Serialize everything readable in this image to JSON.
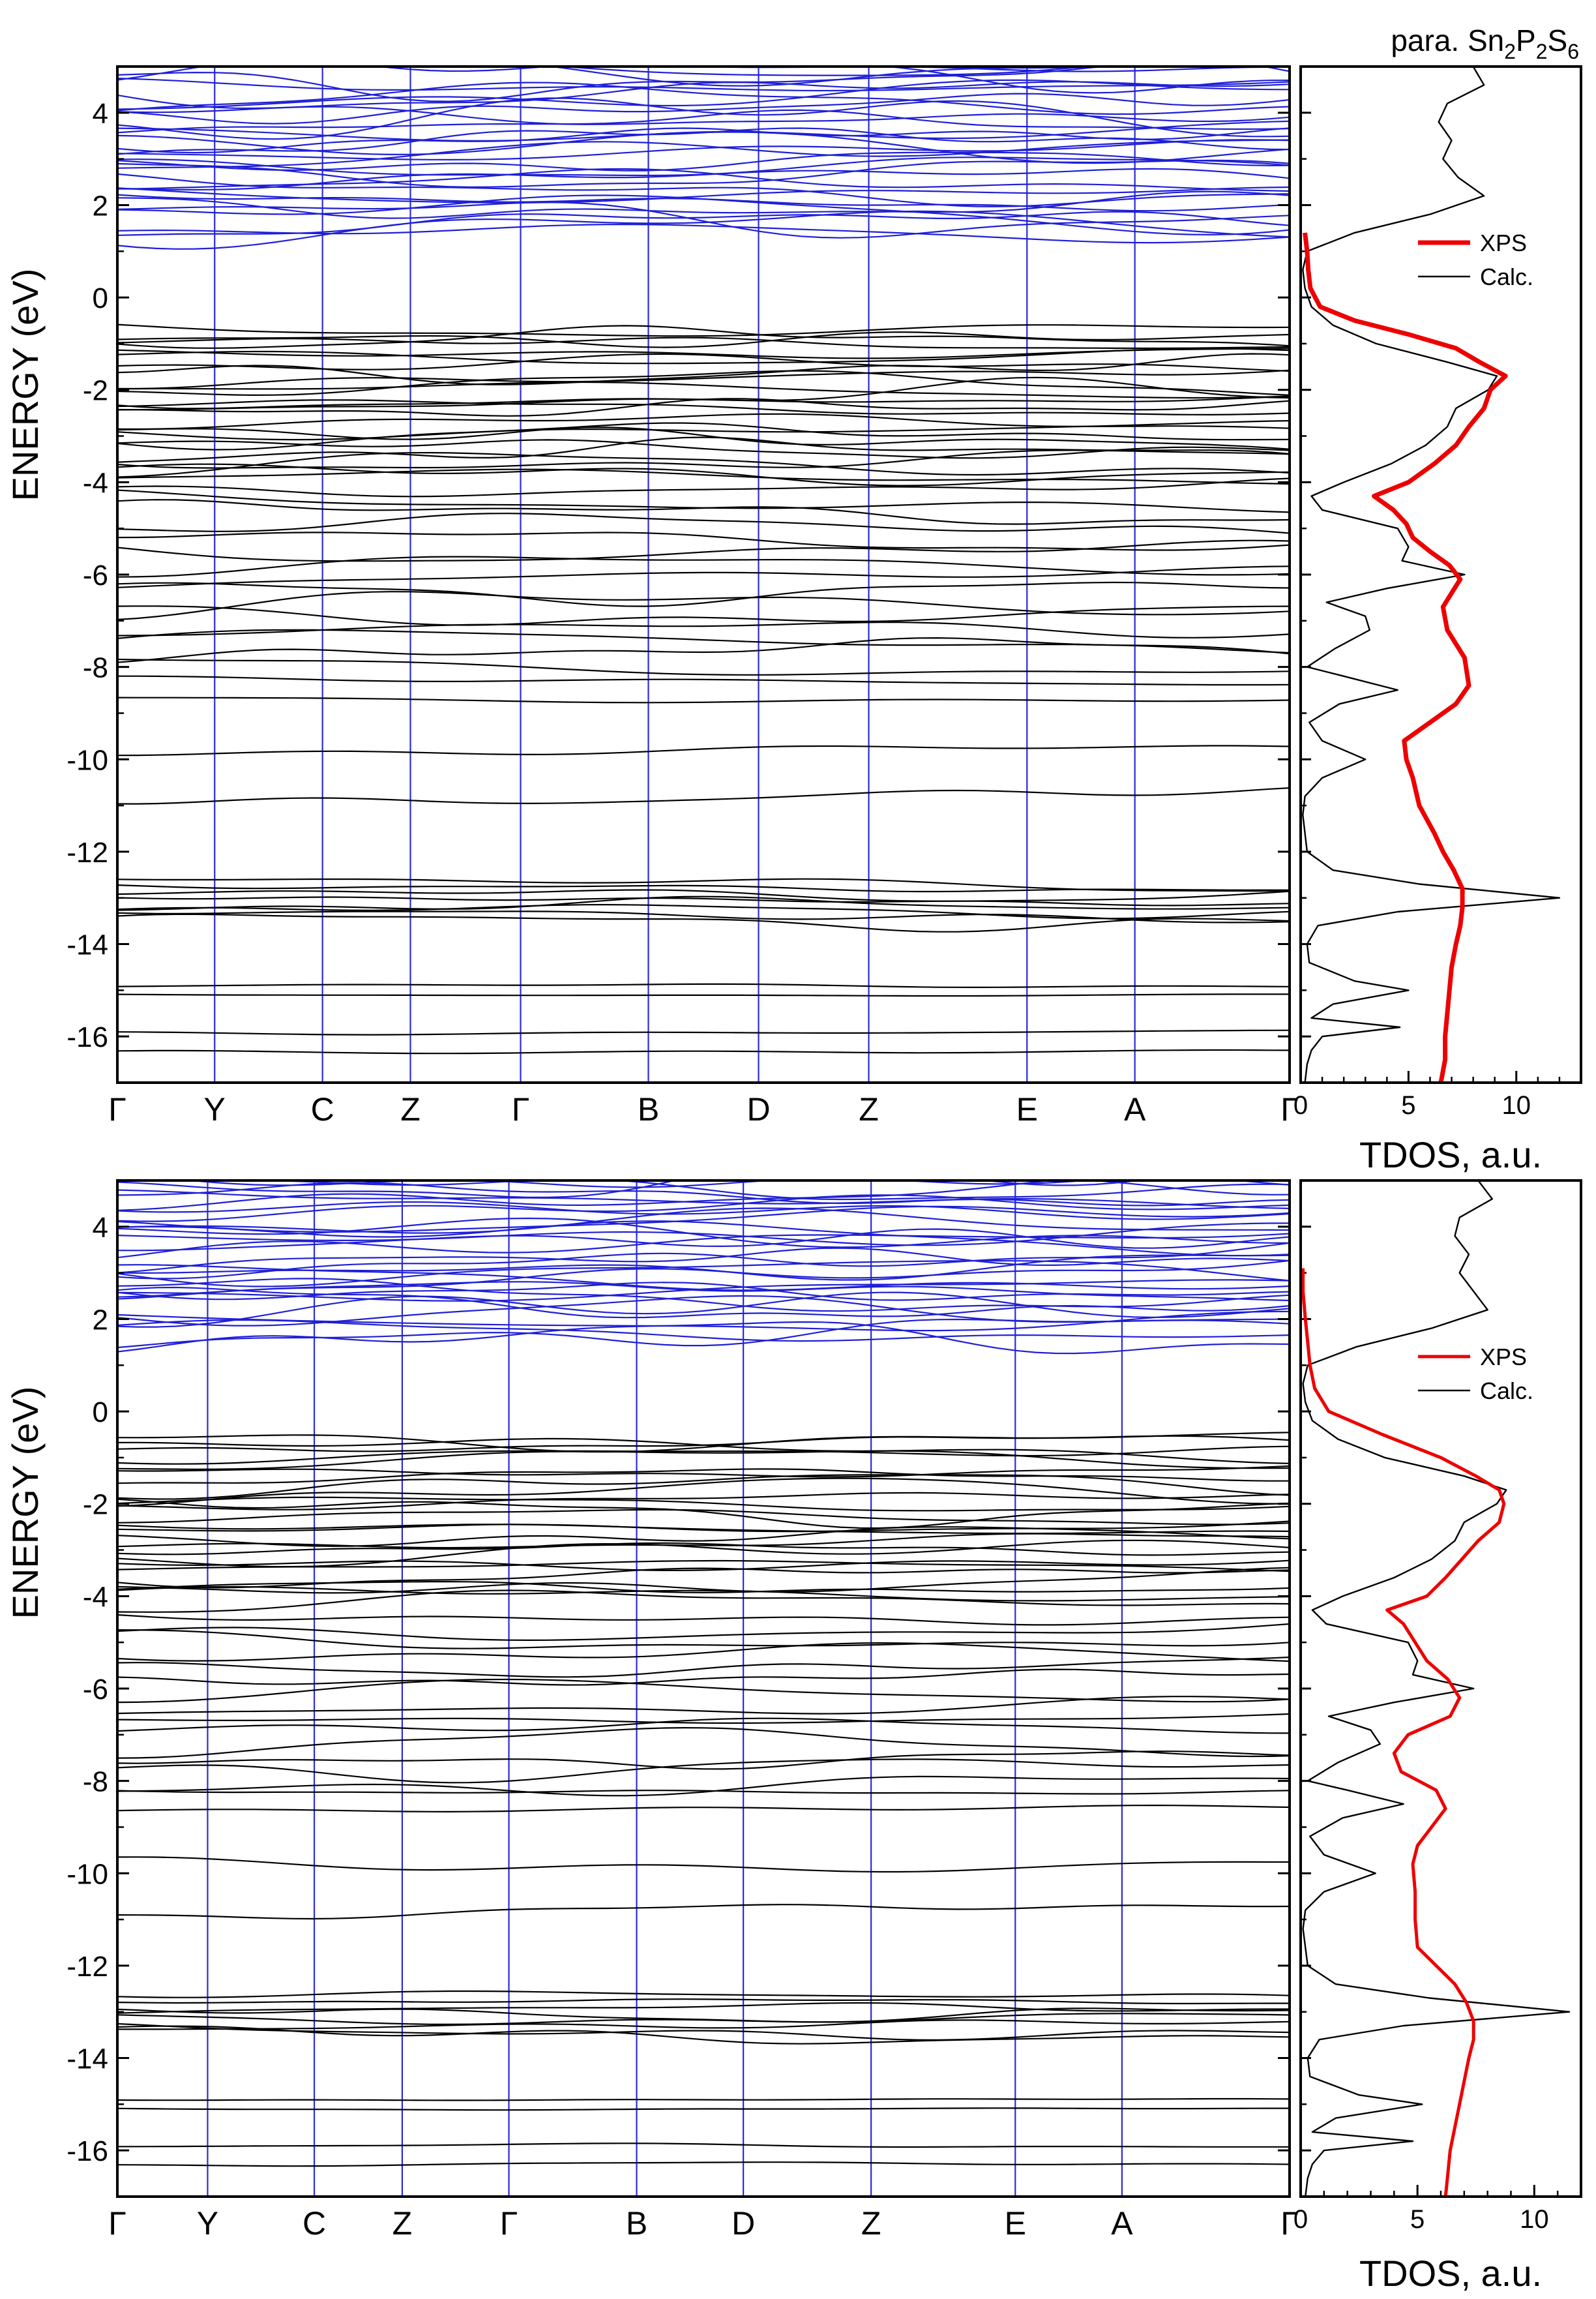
{
  "figure_title": {
    "prefix": "para. Sn",
    "s1": "2",
    "m1": "P",
    "s2": "2",
    "m2": "S",
    "s3": "6"
  },
  "colors": {
    "valence": "#000000",
    "conduction": "#1f1fd6",
    "kpath": "#2b2bd9",
    "xps": "#ee0000",
    "calc": "#000000"
  },
  "chart_data": [
    {
      "type": "line",
      "panel": "top",
      "band_structure": {
        "ylabel": "ENERGY (eV)",
        "ylim": [
          -17,
          5
        ],
        "yticks": [
          4,
          2,
          0,
          -2,
          -4,
          -6,
          -8,
          -10,
          -12,
          -14,
          -16
        ],
        "kpoints": [
          "Γ",
          "Y",
          "C",
          "Z",
          "Γ",
          "B",
          "D",
          "Z",
          "E",
          "A",
          "Γ"
        ],
        "kpoint_positions": [
          0,
          0.083,
          0.175,
          0.25,
          0.344,
          0.453,
          0.547,
          0.641,
          0.776,
          0.868,
          1
        ],
        "conduction_band_minimum": 0.9,
        "valence_band_groups": [
          {
            "range": [
              -4.1,
              -0.6
            ],
            "bands": 26
          },
          {
            "range": [
              -8.0,
              -4.4
            ],
            "bands": 14
          },
          {
            "range": [
              -8.7,
              -8.3
            ],
            "bands": 2
          },
          {
            "range": [
              -10.8,
              -9.8
            ],
            "bands": 2
          },
          {
            "range": [
              -13.5,
              -12.7
            ],
            "bands": 8
          },
          {
            "range": [
              -15.1,
              -14.9
            ],
            "bands": 2
          },
          {
            "range": [
              -16.3,
              -15.9
            ],
            "bands": 2
          }
        ]
      },
      "tdos": {
        "xlabel": "TDOS, a.u.",
        "xlim": [
          0,
          13
        ],
        "xticks": [
          0,
          5,
          10
        ],
        "legend": [
          "XPS",
          "Calc."
        ],
        "legend_position": "upper-right",
        "calc": {
          "E": [
            5,
            4.6,
            4.2,
            3.8,
            3.4,
            3.0,
            2.6,
            2.2,
            1.8,
            1.4,
            1.0,
            0.6,
            0.2,
            -0.2,
            -0.6,
            -1.0,
            -1.4,
            -1.7,
            -2.0,
            -2.4,
            -2.8,
            -3.2,
            -3.6,
            -4.0,
            -4.3,
            -4.6,
            -5.0,
            -5.4,
            -5.7,
            -6.0,
            -6.3,
            -6.6,
            -6.9,
            -7.2,
            -7.6,
            -8.0,
            -8.2,
            -8.5,
            -8.8,
            -9.2,
            -9.6,
            -10.0,
            -10.4,
            -10.8,
            -11.2,
            -11.6,
            -12.0,
            -12.4,
            -12.7,
            -13.0,
            -13.3,
            -13.6,
            -14.0,
            -14.4,
            -14.8,
            -15.0,
            -15.3,
            -15.6,
            -15.8,
            -16.0,
            -16.3,
            -16.6,
            -17.0
          ],
          "TDOS": [
            8.0,
            8.5,
            6.8,
            6.4,
            7.0,
            6.6,
            7.3,
            8.5,
            6.0,
            2.5,
            0.3,
            0.1,
            0.2,
            0.5,
            1.5,
            3.5,
            6.8,
            9.1,
            8.7,
            7.2,
            6.8,
            5.8,
            4.2,
            2.0,
            0.5,
            1.0,
            4.5,
            5.0,
            4.7,
            7.6,
            4.0,
            1.2,
            3.0,
            3.2,
            1.6,
            0.3,
            2.0,
            4.5,
            1.8,
            0.4,
            1.0,
            3.0,
            1.0,
            0.2,
            0.1,
            0.2,
            0.3,
            1.5,
            5.5,
            12.0,
            4.5,
            0.8,
            0.3,
            0.4,
            2.5,
            5.0,
            1.5,
            0.5,
            4.6,
            1.0,
            0.5,
            0.3,
            0.2
          ]
        },
        "xps": {
          "E": [
            1.4,
            1.0,
            0.6,
            0.2,
            -0.2,
            -0.5,
            -0.8,
            -1.1,
            -1.4,
            -1.7,
            -2.0,
            -2.4,
            -2.8,
            -3.2,
            -3.6,
            -4.0,
            -4.3,
            -4.6,
            -4.9,
            -5.2,
            -5.5,
            -5.8,
            -6.1,
            -6.4,
            -6.7,
            -7.2,
            -7.8,
            -8.4,
            -8.8,
            -9.2,
            -9.6,
            -10.0,
            -10.4,
            -11.0,
            -11.6,
            -12.0,
            -12.4,
            -12.8,
            -13.2,
            -13.6,
            -14.0,
            -14.5,
            -15.0,
            -15.5,
            -16.0,
            -16.5,
            -17.0
          ],
          "TDOS": [
            0.2,
            0.3,
            0.35,
            0.45,
            0.9,
            2.5,
            5.0,
            7.2,
            8.3,
            9.5,
            8.8,
            8.5,
            7.8,
            7.2,
            6.2,
            5.0,
            3.4,
            4.3,
            4.9,
            5.2,
            6.0,
            6.9,
            7.4,
            7.0,
            6.6,
            6.8,
            7.6,
            7.8,
            7.2,
            6.0,
            4.8,
            4.9,
            5.2,
            5.5,
            6.2,
            6.6,
            7.1,
            7.5,
            7.5,
            7.4,
            7.2,
            7.0,
            6.9,
            6.8,
            6.7,
            6.7,
            6.5
          ]
        }
      }
    },
    {
      "type": "line",
      "panel": "bottom",
      "band_structure": {
        "ylabel": "ENERGY (eV)",
        "ylim": [
          -17,
          5
        ],
        "yticks": [
          4,
          2,
          0,
          -2,
          -4,
          -6,
          -8,
          -10,
          -12,
          -14,
          -16
        ],
        "kpoints": [
          "Γ",
          "Y",
          "C",
          "Z",
          "Γ",
          "B",
          "D",
          "Z",
          "E",
          "A",
          "Γ"
        ],
        "kpoint_positions": [
          0,
          0.077,
          0.168,
          0.243,
          0.334,
          0.443,
          0.534,
          0.643,
          0.766,
          0.857,
          1
        ],
        "conduction_band_minimum": 1.1,
        "valence_band_groups": [
          {
            "range": [
              -4.1,
              -0.6
            ],
            "bands": 26
          },
          {
            "range": [
              -8.0,
              -4.4
            ],
            "bands": 14
          },
          {
            "range": [
              -8.6,
              -8.2
            ],
            "bands": 2
          },
          {
            "range": [
              -10.8,
              -9.8
            ],
            "bands": 2
          },
          {
            "range": [
              -13.5,
              -12.7
            ],
            "bands": 8
          },
          {
            "range": [
              -15.1,
              -14.9
            ],
            "bands": 2
          },
          {
            "range": [
              -16.3,
              -15.9
            ],
            "bands": 2
          }
        ]
      },
      "tdos": {
        "xlabel": "TDOS, a.u.",
        "xlim": [
          0,
          12
        ],
        "xticks": [
          0,
          5,
          10
        ],
        "legend": [
          "XPS",
          "Calc."
        ],
        "legend_position": "upper-right",
        "calc": {
          "E": [
            5,
            4.6,
            4.2,
            3.8,
            3.4,
            3.0,
            2.6,
            2.2,
            1.8,
            1.4,
            1.0,
            0.6,
            0.2,
            -0.2,
            -0.6,
            -1.0,
            -1.4,
            -1.7,
            -2.0,
            -2.4,
            -2.8,
            -3.2,
            -3.6,
            -4.0,
            -4.3,
            -4.6,
            -5.0,
            -5.4,
            -5.7,
            -6.0,
            -6.3,
            -6.6,
            -6.9,
            -7.2,
            -7.6,
            -8.0,
            -8.2,
            -8.5,
            -8.8,
            -9.2,
            -9.6,
            -10.0,
            -10.4,
            -10.8,
            -11.2,
            -11.6,
            -12.0,
            -12.4,
            -12.7,
            -13.0,
            -13.3,
            -13.6,
            -14.0,
            -14.4,
            -14.8,
            -15.0,
            -15.3,
            -15.6,
            -15.8,
            -16.0,
            -16.3,
            -16.6,
            -17.0
          ],
          "TDOS": [
            7.6,
            8.2,
            6.8,
            6.6,
            7.2,
            6.8,
            7.4,
            8.0,
            5.6,
            2.4,
            0.3,
            0.1,
            0.2,
            0.5,
            1.6,
            3.6,
            7.0,
            8.8,
            8.4,
            7.0,
            6.6,
            5.6,
            4.0,
            1.8,
            0.5,
            1.1,
            4.6,
            5.0,
            4.8,
            7.4,
            4.0,
            1.2,
            3.0,
            3.4,
            1.6,
            0.3,
            2.0,
            4.4,
            1.8,
            0.4,
            1.0,
            3.2,
            1.0,
            0.2,
            0.1,
            0.2,
            0.3,
            1.5,
            5.5,
            11.5,
            4.4,
            0.8,
            0.3,
            0.4,
            2.5,
            5.2,
            1.5,
            0.5,
            4.8,
            1.0,
            0.5,
            0.3,
            0.2
          ]
        },
        "xps": {
          "E": [
            3.1,
            2.6,
            2.0,
            1.5,
            1.0,
            0.5,
            0.0,
            -0.5,
            -1.0,
            -1.4,
            -1.7,
            -2.0,
            -2.4,
            -2.8,
            -3.2,
            -3.6,
            -4.0,
            -4.3,
            -4.6,
            -5.0,
            -5.4,
            -5.8,
            -6.2,
            -6.6,
            -7.0,
            -7.4,
            -7.8,
            -8.2,
            -8.6,
            -9.0,
            -9.4,
            -9.8,
            -10.4,
            -11.0,
            -11.6,
            -12.0,
            -12.4,
            -12.8,
            -13.2,
            -13.6,
            -14.0,
            -14.5,
            -15.0,
            -15.5,
            -16.0,
            -16.5,
            -17.0
          ],
          "TDOS": [
            0.1,
            0.1,
            0.2,
            0.3,
            0.4,
            0.6,
            1.2,
            3.5,
            6.0,
            7.5,
            8.5,
            8.7,
            8.5,
            7.6,
            6.9,
            6.2,
            5.4,
            3.7,
            4.4,
            4.9,
            5.4,
            6.3,
            6.8,
            6.4,
            4.6,
            4.0,
            4.3,
            5.8,
            6.2,
            5.6,
            5.0,
            4.8,
            4.9,
            4.9,
            5.0,
            5.8,
            6.6,
            7.1,
            7.4,
            7.4,
            7.2,
            7.0,
            6.8,
            6.6,
            6.4,
            6.3,
            6.2
          ]
        }
      }
    }
  ]
}
